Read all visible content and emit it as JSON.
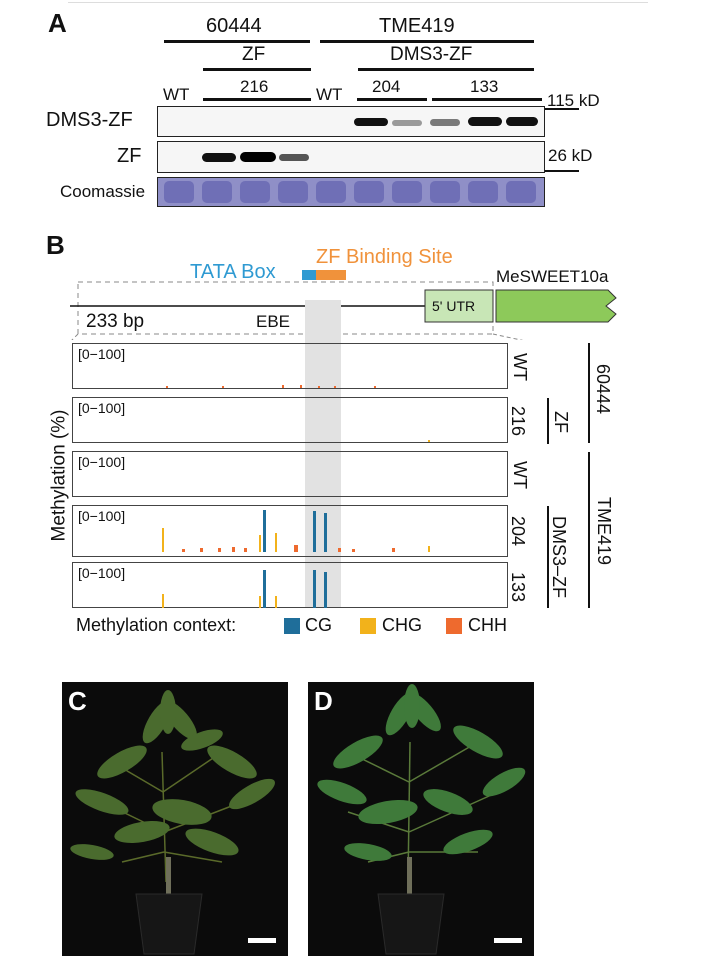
{
  "top_rule": "",
  "panelA": {
    "letter": "A",
    "group1": "60444",
    "group2": "TME419",
    "sub1": "ZF",
    "sub2": "DMS3-ZF",
    "lanes": {
      "wt1": "WT",
      "l216": "216",
      "wt2": "WT",
      "l204": "204",
      "l133": "133"
    },
    "row_labels": {
      "dms3zf": "DMS3-ZF",
      "zf": "ZF",
      "coomassie": "Coomassie"
    },
    "sizes": {
      "kd115": "115 kD",
      "kd26": "26 kD"
    }
  },
  "panelB": {
    "letter": "B",
    "tata": "TATA Box",
    "zf_site": "ZF Binding Site",
    "gene": "MeSWEET10a",
    "utr": "5' UTR",
    "bp": "233 bp",
    "ebe": "EBE",
    "ylabel": "Methylation (%)",
    "range": "[0−100]",
    "tracks": [
      {
        "id": "wt1",
        "label": "WT"
      },
      {
        "id": "zf216",
        "label": "216"
      },
      {
        "id": "wt2",
        "label": "WT"
      },
      {
        "id": "d204",
        "label": "204"
      },
      {
        "id": "d133",
        "label": "133"
      }
    ],
    "right_groups": {
      "g60444": "60444",
      "zf": "ZF",
      "tme419": "TME419",
      "dms3zf": "DMS3–ZF"
    },
    "legend": {
      "title": "Methylation context:",
      "cg": "CG",
      "chg": "CHG",
      "chh": "CHH"
    },
    "colors": {
      "cg": "#1f6e9a",
      "chg": "#f2b21b",
      "chh": "#ee6a2e",
      "tata": "#2f9ad2",
      "zf": "#f0923b",
      "gene": "#8dc95a",
      "utr": "#c8e6b6"
    }
  },
  "panelC": {
    "letter": "C"
  },
  "panelD": {
    "letter": "D"
  }
}
